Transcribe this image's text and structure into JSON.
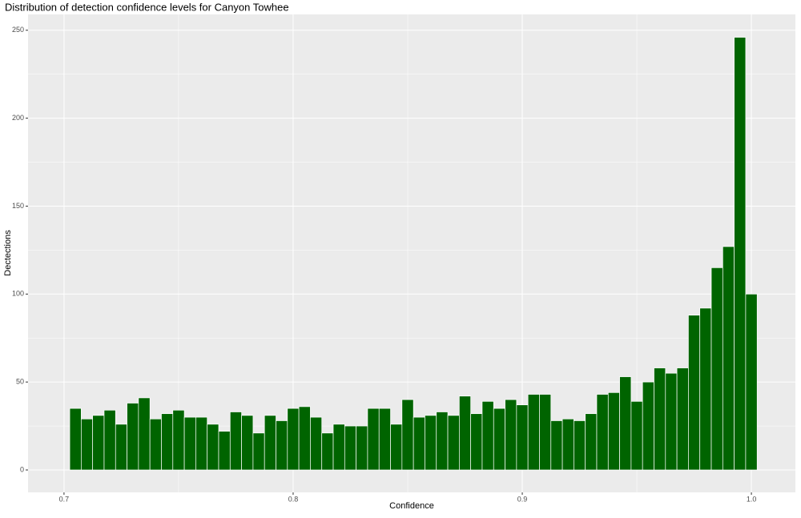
{
  "chart_data": {
    "type": "histogram",
    "title": "Distribution of detection confidence levels for Canyon Towhee",
    "x_label": "Confidence",
    "y_label": "Dectections",
    "bins": [
      0.7025,
      0.7075,
      0.7125,
      0.7175,
      0.7225,
      0.7275,
      0.7325,
      0.7375,
      0.7425,
      0.7475,
      0.7525,
      0.7575,
      0.7625,
      0.7675,
      0.7725,
      0.7775,
      0.7825,
      0.7875,
      0.7925,
      0.7975,
      0.8025,
      0.8075,
      0.8125,
      0.8175,
      0.8225,
      0.8275,
      0.8325,
      0.8375,
      0.8425,
      0.8475,
      0.8525,
      0.8575,
      0.8625,
      0.8675,
      0.8725,
      0.8775,
      0.8825,
      0.8875,
      0.8925,
      0.8975,
      0.9025,
      0.9075,
      0.9125,
      0.9175,
      0.9225,
      0.9275,
      0.9325,
      0.9375,
      0.9425,
      0.9475,
      0.9525,
      0.9575,
      0.9625,
      0.9675,
      0.9725,
      0.9775,
      0.9825,
      0.9875,
      0.9925,
      0.9975,
      1.0025
    ],
    "values": [
      35,
      29,
      31,
      34,
      26,
      38,
      41,
      29,
      32,
      34,
      30,
      30,
      26,
      22,
      33,
      31,
      21,
      31,
      28,
      35,
      36,
      30,
      21,
      26,
      25,
      25,
      35,
      35,
      26,
      40,
      30,
      31,
      33,
      31,
      42,
      32,
      39,
      35,
      40,
      37,
      43,
      43,
      28,
      29,
      28,
      32,
      43,
      44,
      53,
      39,
      50,
      58,
      55,
      58,
      88,
      92,
      115,
      127,
      246,
      100
    ],
    "color": "#006400",
    "xlim": [
      0.6843,
      1.0192
    ],
    "ylim": [
      -12.75,
      259
    ],
    "xticks": [
      0.7,
      0.8,
      0.9,
      {
        "value": 1,
        "label": "1.0"
      }
    ],
    "yticks": [
      0,
      50,
      100,
      150,
      200,
      250
    ],
    "x_minor_ticks": [
      0.75,
      0.85,
      0.95
    ],
    "y_minor_ticks": [
      25,
      75,
      125,
      175,
      225
    ],
    "grid": true
  }
}
